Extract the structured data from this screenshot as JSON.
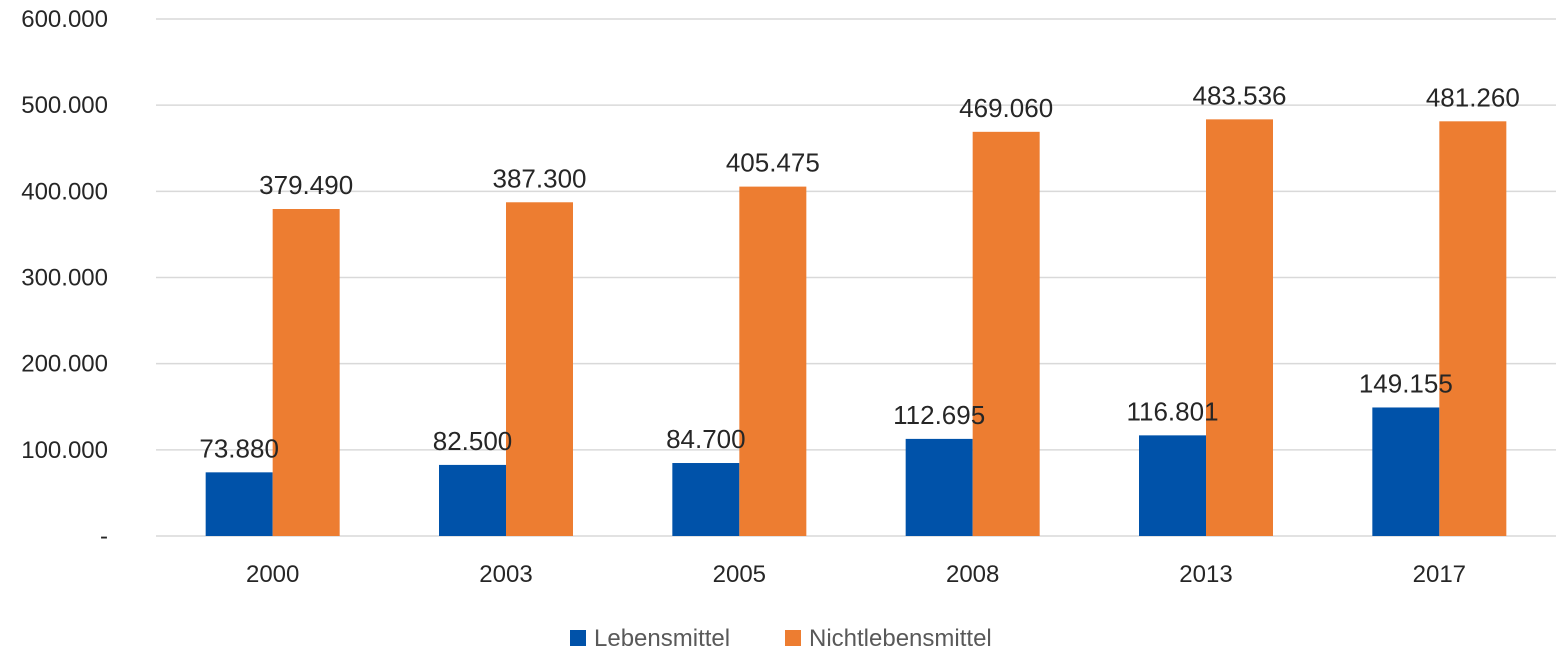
{
  "chart_data": {
    "type": "bar",
    "categories": [
      "2000",
      "2003",
      "2005",
      "2008",
      "2013",
      "2017"
    ],
    "series": [
      {
        "name": "Lebensmittel",
        "color": "#0052a9",
        "values": [
          73880,
          82500,
          84700,
          112695,
          116801,
          149155
        ],
        "labels": [
          "73.880",
          "82.500",
          "84.700",
          "112.695",
          "116.801",
          "149.155"
        ]
      },
      {
        "name": "Nichtlebensmittel",
        "color": "#ed7d31",
        "values": [
          379490,
          387300,
          405475,
          469060,
          483536,
          481260
        ],
        "labels": [
          "379.490",
          "387.300",
          "405.475",
          "469.060",
          "483.536",
          "481.260"
        ]
      }
    ],
    "ylim": [
      0,
      600000
    ],
    "yticks": [
      0,
      100000,
      200000,
      300000,
      400000,
      500000,
      600000
    ],
    "ytick_labels": [
      "-",
      "100.000",
      "200.000",
      "300.000",
      "400.000",
      "500.000",
      "600.000"
    ],
    "grid": true,
    "legend": "bottom-center"
  }
}
